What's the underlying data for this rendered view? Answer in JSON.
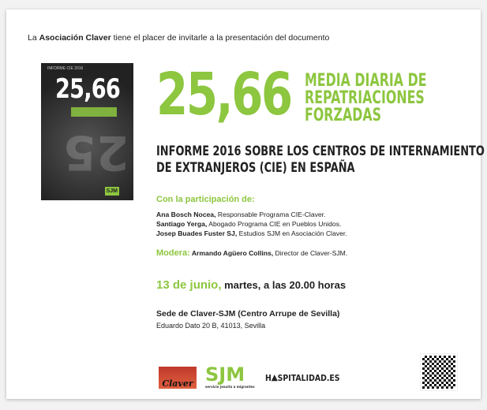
{
  "intro": {
    "prefix": "La ",
    "org": "Asociación Claver",
    "suffix": " tiene el placer de invitarle a la presentación del documento"
  },
  "cover": {
    "number": "25,66",
    "top_text": "INFORME CIE 2016",
    "logo": "SJM"
  },
  "headline": {
    "number": "25,66",
    "line1": "MEDIA DIARIA DE",
    "line2": "REPATRIACIONES",
    "line3": "FORZADAS"
  },
  "report": {
    "line1": "INFORME 2016 SOBRE LOS CENTROS DE INTERNAMIENTO",
    "line2": "DE EXTRANJEROS (CIE) EN ESPAÑA"
  },
  "participation_heading": "Con la participación de:",
  "participants": [
    {
      "name": "Ana Bosch Nocea,",
      "role": " Responsable Programa CIE-Claver."
    },
    {
      "name": "Santiago Yerga,",
      "role": " Abogado Programa CIE en Pueblos Unidos."
    },
    {
      "name": "Josep Buades Fuster SJ,",
      "role": " Estudios SJM en Asociación Claver."
    }
  ],
  "moderator": {
    "label": "Modera:",
    "name": " Armando Agüero Collins,",
    "role": " Director de Claver-SJM."
  },
  "date": {
    "day": "13 de junio,",
    "time": " martes, a las 20.00 horas"
  },
  "venue": {
    "name": "Sede de Claver-SJM (Centro Arrupe de Sevilla)",
    "address": "Eduardo Dato 20 B, 41013, Sevilla"
  },
  "logos": {
    "claver": "Claver",
    "sjm": "SJM",
    "sjm_sub": "servicio jesuita a migrantes",
    "hospitalidad": "H⛰SPITALIDAD.ES"
  },
  "colors": {
    "accent": "#8dc63f"
  }
}
